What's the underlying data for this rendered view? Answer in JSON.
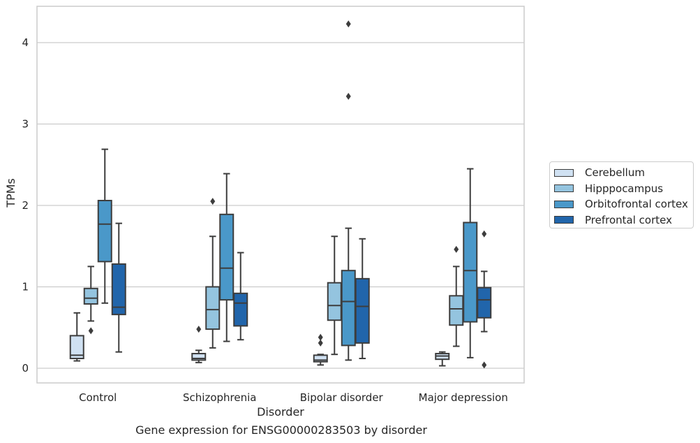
{
  "chart_data": {
    "type": "boxplot",
    "title": "",
    "caption": "Gene expression for ENSG00000283503 by disorder",
    "xlabel": "Disorder",
    "ylabel": "TPMs",
    "ylim": [
      -0.17,
      4.45
    ],
    "yticks": [
      0,
      1,
      2,
      3,
      4
    ],
    "grid": "horizontal",
    "legend_position": "right",
    "categories": [
      "Control",
      "Schizophrenia",
      "Bipolar disorder",
      "Major depression"
    ],
    "series": [
      {
        "name": "Cerebellum",
        "color": "#d0e1f2",
        "boxes": [
          {
            "whislo": 0.09,
            "q1": 0.12,
            "med": 0.16,
            "q3": 0.4,
            "whishi": 0.68,
            "fliers": []
          },
          {
            "whislo": 0.07,
            "q1": 0.1,
            "med": 0.12,
            "q3": 0.18,
            "whishi": 0.22,
            "fliers": [
              0.48
            ]
          },
          {
            "whislo": 0.04,
            "q1": 0.08,
            "med": 0.1,
            "q3": 0.16,
            "whishi": 0.17,
            "fliers": [
              0.31,
              0.38
            ]
          },
          {
            "whislo": 0.03,
            "q1": 0.11,
            "med": 0.15,
            "q3": 0.18,
            "whishi": 0.2,
            "fliers": []
          }
        ]
      },
      {
        "name": "Hipppocampus",
        "color": "#94c4df",
        "boxes": [
          {
            "whislo": 0.58,
            "q1": 0.79,
            "med": 0.86,
            "q3": 0.98,
            "whishi": 1.25,
            "fliers": [
              0.46
            ]
          },
          {
            "whislo": 0.25,
            "q1": 0.48,
            "med": 0.72,
            "q3": 1.0,
            "whishi": 1.62,
            "fliers": [
              2.05
            ]
          },
          {
            "whislo": 0.17,
            "q1": 0.59,
            "med": 0.77,
            "q3": 1.05,
            "whishi": 1.62,
            "fliers": []
          },
          {
            "whislo": 0.27,
            "q1": 0.53,
            "med": 0.73,
            "q3": 0.89,
            "whishi": 1.25,
            "fliers": [
              1.46
            ]
          }
        ]
      },
      {
        "name": "Orbitofrontal cortex",
        "color": "#4a98c9",
        "boxes": [
          {
            "whislo": 0.8,
            "q1": 1.31,
            "med": 1.77,
            "q3": 2.06,
            "whishi": 2.69,
            "fliers": []
          },
          {
            "whislo": 0.33,
            "q1": 0.84,
            "med": 1.23,
            "q3": 1.89,
            "whishi": 2.39,
            "fliers": []
          },
          {
            "whislo": 0.1,
            "q1": 0.28,
            "med": 0.82,
            "q3": 1.2,
            "whishi": 1.72,
            "fliers": [
              3.34,
              4.23
            ]
          },
          {
            "whislo": 0.13,
            "q1": 0.57,
            "med": 1.2,
            "q3": 1.79,
            "whishi": 2.45,
            "fliers": []
          }
        ]
      },
      {
        "name": "Prefrontal cortex",
        "color": "#2165ab",
        "boxes": [
          {
            "whislo": 0.2,
            "q1": 0.66,
            "med": 0.75,
            "q3": 1.28,
            "whishi": 1.78,
            "fliers": []
          },
          {
            "whislo": 0.35,
            "q1": 0.52,
            "med": 0.8,
            "q3": 0.92,
            "whishi": 1.42,
            "fliers": []
          },
          {
            "whislo": 0.12,
            "q1": 0.31,
            "med": 0.76,
            "q3": 1.1,
            "whishi": 1.59,
            "fliers": []
          },
          {
            "whislo": 0.45,
            "q1": 0.62,
            "med": 0.84,
            "q3": 0.99,
            "whishi": 1.19,
            "fliers": [
              0.04,
              1.65
            ]
          }
        ]
      }
    ]
  }
}
